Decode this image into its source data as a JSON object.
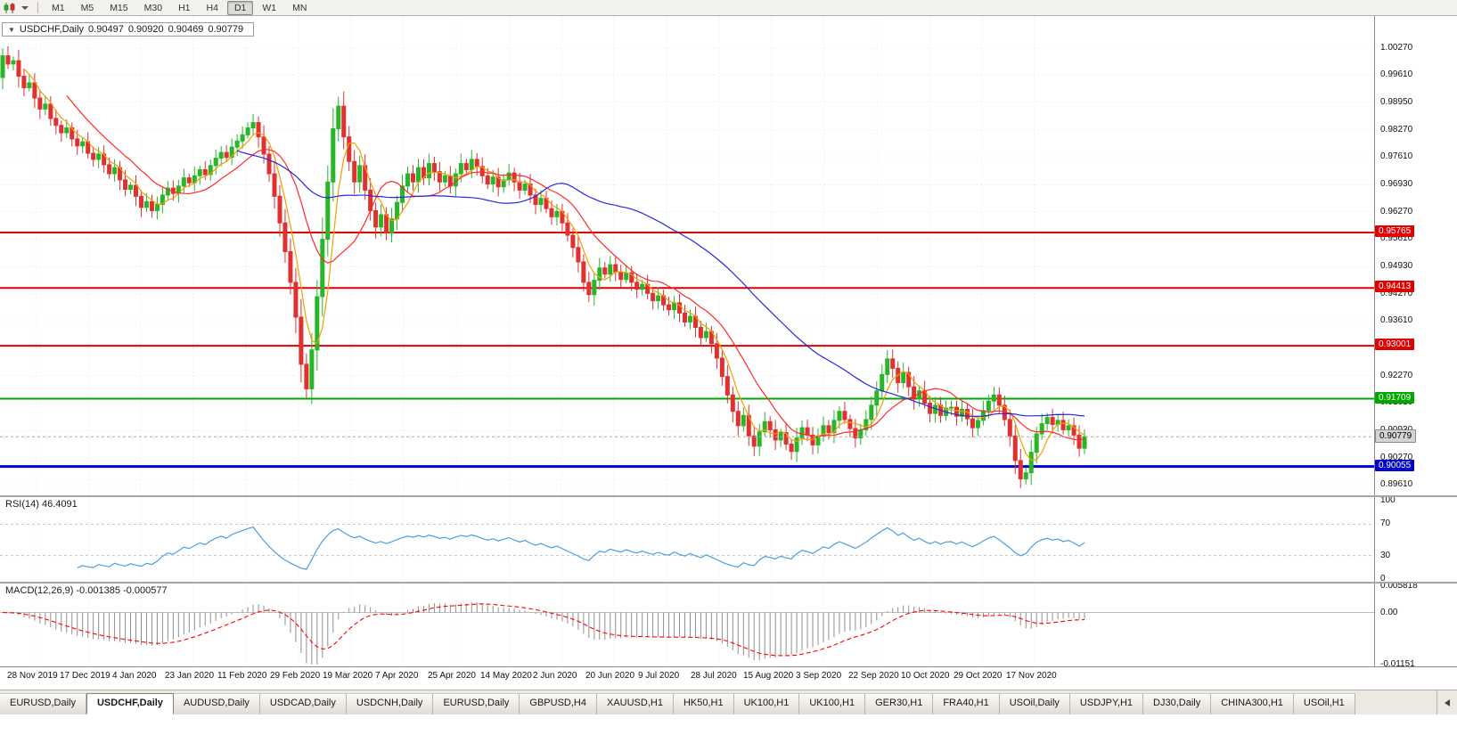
{
  "toolbar": {
    "timeframes": [
      {
        "label": "M1",
        "active": false
      },
      {
        "label": "M5",
        "active": false
      },
      {
        "label": "M15",
        "active": false
      },
      {
        "label": "M30",
        "active": false
      },
      {
        "label": "H1",
        "active": false
      },
      {
        "label": "H4",
        "active": false
      },
      {
        "label": "D1",
        "active": true
      },
      {
        "label": "W1",
        "active": false
      },
      {
        "label": "MN",
        "active": false
      }
    ]
  },
  "chart_title": {
    "collapse_icon": "▼",
    "symbol": "USDCHF,Daily",
    "open": "0.90497",
    "high": "0.90920",
    "low": "0.90469",
    "close": "0.90779"
  },
  "chart_data": {
    "type": "candlestick",
    "symbol": "USDCHF",
    "timeframe": "Daily",
    "y_domain": [
      0.8935,
      1.0105
    ],
    "y_axis_labels": [
      "1.00270",
      "0.99610",
      "0.98950",
      "0.98270",
      "0.97610",
      "0.96930",
      "0.96270",
      "0.95610",
      "0.94930",
      "0.94270",
      "0.93610",
      "0.92930",
      "0.92270",
      "0.91610",
      "0.90930",
      "0.90270",
      "0.89610"
    ],
    "x_labels": [
      "28 Nov 2019",
      "17 Dec 2019",
      "4 Jan 2020",
      "23 Jan 2020",
      "11 Feb 2020",
      "29 Feb 2020",
      "19 Mar 2020",
      "7 Apr 2020",
      "25 Apr 2020",
      "14 May 2020",
      "2 Jun 2020",
      "20 Jun 2020",
      "9 Jul 2020",
      "28 Jul 2020",
      "15 Aug 2020",
      "3 Sep 2020",
      "22 Sep 2020",
      "10 Oct 2020",
      "29 Oct 2020",
      "17 Nov 2020"
    ],
    "first_open": 0.9955,
    "closes": [
      1.0008,
      0.9988,
      0.9996,
      0.9958,
      0.993,
      0.9942,
      0.9905,
      0.9878,
      0.989,
      0.9855,
      0.9838,
      0.982,
      0.9832,
      0.9805,
      0.9788,
      0.9798,
      0.977,
      0.9755,
      0.9768,
      0.9742,
      0.972,
      0.9735,
      0.9705,
      0.9682,
      0.9692,
      0.9665,
      0.9638,
      0.9652,
      0.963,
      0.9645,
      0.9668,
      0.9685,
      0.9672,
      0.969,
      0.971,
      0.9698,
      0.9715,
      0.973,
      0.9718,
      0.974,
      0.9758,
      0.9772,
      0.976,
      0.9785,
      0.98,
      0.9815,
      0.9832,
      0.9845,
      0.981,
      0.9768,
      0.972,
      0.9665,
      0.96,
      0.953,
      0.9455,
      0.937,
      0.9255,
      0.9195,
      0.929,
      0.942,
      0.956,
      0.97,
      0.983,
      0.9885,
      0.981,
      0.975,
      0.97,
      0.974,
      0.968,
      0.963,
      0.959,
      0.962,
      0.9575,
      0.961,
      0.965,
      0.969,
      0.972,
      0.97,
      0.9735,
      0.971,
      0.9745,
      0.9725,
      0.97,
      0.9715,
      0.969,
      0.972,
      0.9745,
      0.973,
      0.9755,
      0.9738,
      0.9715,
      0.9695,
      0.9712,
      0.9688,
      0.9705,
      0.9722,
      0.97,
      0.968,
      0.9695,
      0.9668,
      0.9645,
      0.966,
      0.9635,
      0.9615,
      0.9628,
      0.96,
      0.957,
      0.954,
      0.9505,
      0.9455,
      0.9425,
      0.946,
      0.949,
      0.9475,
      0.9498,
      0.948,
      0.9462,
      0.9478,
      0.9455,
      0.9438,
      0.945,
      0.9428,
      0.941,
      0.9422,
      0.94,
      0.9388,
      0.9405,
      0.938,
      0.9358,
      0.9372,
      0.9345,
      0.932,
      0.9335,
      0.9305,
      0.927,
      0.9225,
      0.918,
      0.914,
      0.9105,
      0.913,
      0.908,
      0.9055,
      0.909,
      0.9115,
      0.9095,
      0.907,
      0.9088,
      0.906,
      0.9042,
      0.9075,
      0.91,
      0.9082,
      0.9058,
      0.908,
      0.9105,
      0.9088,
      0.9118,
      0.914,
      0.912,
      0.9098,
      0.9075,
      0.9095,
      0.912,
      0.9155,
      0.919,
      0.923,
      0.9268,
      0.9245,
      0.921,
      0.9235,
      0.92,
      0.917,
      0.919,
      0.916,
      0.9135,
      0.9155,
      0.913,
      0.9148,
      0.915,
      0.9128,
      0.9145,
      0.9122,
      0.91,
      0.9118,
      0.9142,
      0.9165,
      0.918,
      0.9155,
      0.912,
      0.908,
      0.902,
      0.8975,
      0.899,
      0.904,
      0.9085,
      0.911,
      0.9125,
      0.9108,
      0.9118,
      0.9095,
      0.9105,
      0.9082,
      0.905,
      0.9078
    ],
    "overlays": [
      {
        "name": "SMA fast",
        "period": 5,
        "color": "#f0a000"
      },
      {
        "name": "SMA mid",
        "period": 13,
        "color": "#ff2a2a"
      },
      {
        "name": "SMA slow",
        "period": 45,
        "color": "#2828d8"
      }
    ],
    "levels": [
      {
        "label": "0.95765",
        "value": 0.95765,
        "color": "#e00000",
        "width": 2
      },
      {
        "label": "0.94413",
        "value": 0.94413,
        "color": "#e00000",
        "width": 2
      },
      {
        "label": "0.93001",
        "value": 0.93001,
        "color": "#e00000",
        "width": 2
      },
      {
        "label": "0.91709",
        "value": 0.91709,
        "color": "#00a800",
        "width": 2
      },
      {
        "label": "0.90055",
        "value": 0.90055,
        "color": "#0000cc",
        "width": 3
      }
    ],
    "current_price": {
      "label": "0.90779",
      "value": 0.90779
    },
    "candle_colors": {
      "bull": "#28b628",
      "bear": "#e03030"
    },
    "grid_color": "#e6e6e6"
  },
  "rsi": {
    "label": "RSI(14) 46.4091",
    "period": 14,
    "last_value": 46.4091,
    "axis_labels": [
      "100",
      "70",
      "30",
      "0"
    ],
    "guide_levels": [
      70,
      30
    ],
    "color": "#4f9fd8",
    "y_domain": [
      0,
      100
    ]
  },
  "macd": {
    "label": "MACD(12,26,9) -0.001385 -0.000577",
    "fast": 12,
    "slow": 26,
    "signal_period": 9,
    "main_value": -0.001385,
    "signal_value": -0.000577,
    "axis_labels": [
      "0.005818",
      "0.00",
      "-0.01151"
    ],
    "y_domain": [
      -0.01151,
      0.005818
    ],
    "hist_color": "#8f8f8f",
    "signal_color": "#ff0000"
  },
  "tabs": {
    "items": [
      {
        "label": "EURUSD,Daily",
        "active": false
      },
      {
        "label": "USDCHF,Daily",
        "active": true
      },
      {
        "label": "AUDUSD,Daily",
        "active": false
      },
      {
        "label": "USDCAD,Daily",
        "active": false
      },
      {
        "label": "USDCNH,Daily",
        "active": false
      },
      {
        "label": "EURUSD,Daily",
        "active": false
      },
      {
        "label": "GBPUSD,H4",
        "active": false
      },
      {
        "label": "XAUUSD,H1",
        "active": false
      },
      {
        "label": "HK50,H1",
        "active": false
      },
      {
        "label": "UK100,H1",
        "active": false
      },
      {
        "label": "UK100,H1",
        "active": false
      },
      {
        "label": "GER30,H1",
        "active": false
      },
      {
        "label": "FRA40,H1",
        "active": false
      },
      {
        "label": "USOil,Daily",
        "active": false
      },
      {
        "label": "USDJPY,H1",
        "active": false
      },
      {
        "label": "DJ30,Daily",
        "active": false
      },
      {
        "label": "CHINA300,H1",
        "active": false
      },
      {
        "label": "USOil,H1",
        "active": false
      }
    ]
  }
}
